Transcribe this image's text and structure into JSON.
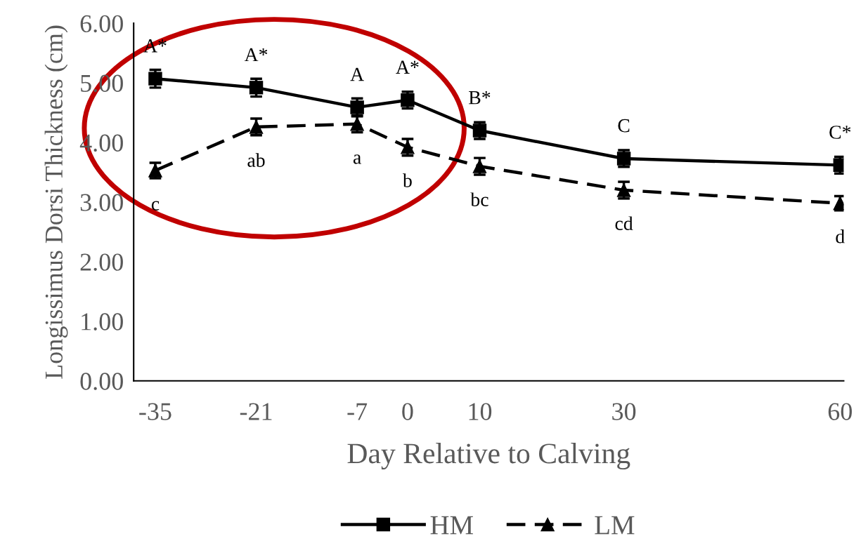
{
  "chart_data": {
    "type": "line",
    "xlabel": "Day Relative to Calving",
    "ylabel": "Longissimus Dorsi Thickness (cm)",
    "xlim": [
      -38,
      60.5
    ],
    "xticks": [
      -35,
      -21,
      -7,
      0,
      10,
      30,
      60
    ],
    "ylim": [
      0,
      6
    ],
    "yticks": [
      {
        "value": 0,
        "label": "0.00"
      },
      {
        "value": 1,
        "label": "1.00"
      },
      {
        "value": 2,
        "label": "2.00"
      },
      {
        "value": 3,
        "label": "3.00"
      },
      {
        "value": 4,
        "label": "4.00"
      },
      {
        "value": 5,
        "label": "5.00"
      },
      {
        "value": 6,
        "label": "6.00"
      }
    ],
    "x": [
      -35,
      -21,
      -7,
      0,
      10,
      30,
      60
    ],
    "series": [
      {
        "name": "HM",
        "color": "#000000",
        "marker": "square",
        "line_style": "solid",
        "values": [
          5.07,
          4.92,
          4.59,
          4.71,
          4.2,
          3.73,
          3.62
        ],
        "errors": [
          0.15,
          0.15,
          0.15,
          0.14,
          0.14,
          0.14,
          0.14
        ]
      },
      {
        "name": "LM",
        "color": "#000000",
        "marker": "triangle",
        "line_style": "dashed",
        "values": [
          3.53,
          4.26,
          4.31,
          3.92,
          3.6,
          3.2,
          2.98
        ],
        "errors": [
          0.13,
          0.14,
          0.14,
          0.14,
          0.14,
          0.14,
          0.12
        ]
      }
    ],
    "annotations": [
      {
        "text": "A*",
        "x": -35,
        "y": 5.07
      },
      {
        "text": "A*",
        "x": -21,
        "y": 4.92
      },
      {
        "text": "A",
        "x": -7,
        "y": 4.59
      },
      {
        "text": "A*",
        "x": 0,
        "y": 4.71
      },
      {
        "text": "B*",
        "x": 10,
        "y": 4.2
      },
      {
        "text": "C",
        "x": 30,
        "y": 3.73
      },
      {
        "text": "C*",
        "x": 60,
        "y": 3.62
      },
      {
        "text": "c",
        "x": -35,
        "y": 3.53
      },
      {
        "text": "ab",
        "x": -21,
        "y": 4.26
      },
      {
        "text": "a",
        "x": -7,
        "y": 4.31
      },
      {
        "text": "b",
        "x": 0,
        "y": 3.92
      },
      {
        "text": "bc",
        "x": 10,
        "y": 3.6
      },
      {
        "text": "cd",
        "x": 30,
        "y": 3.2
      },
      {
        "text": "d",
        "x": 60,
        "y": 2.98
      }
    ],
    "grid": false,
    "legend": "bottom"
  }
}
